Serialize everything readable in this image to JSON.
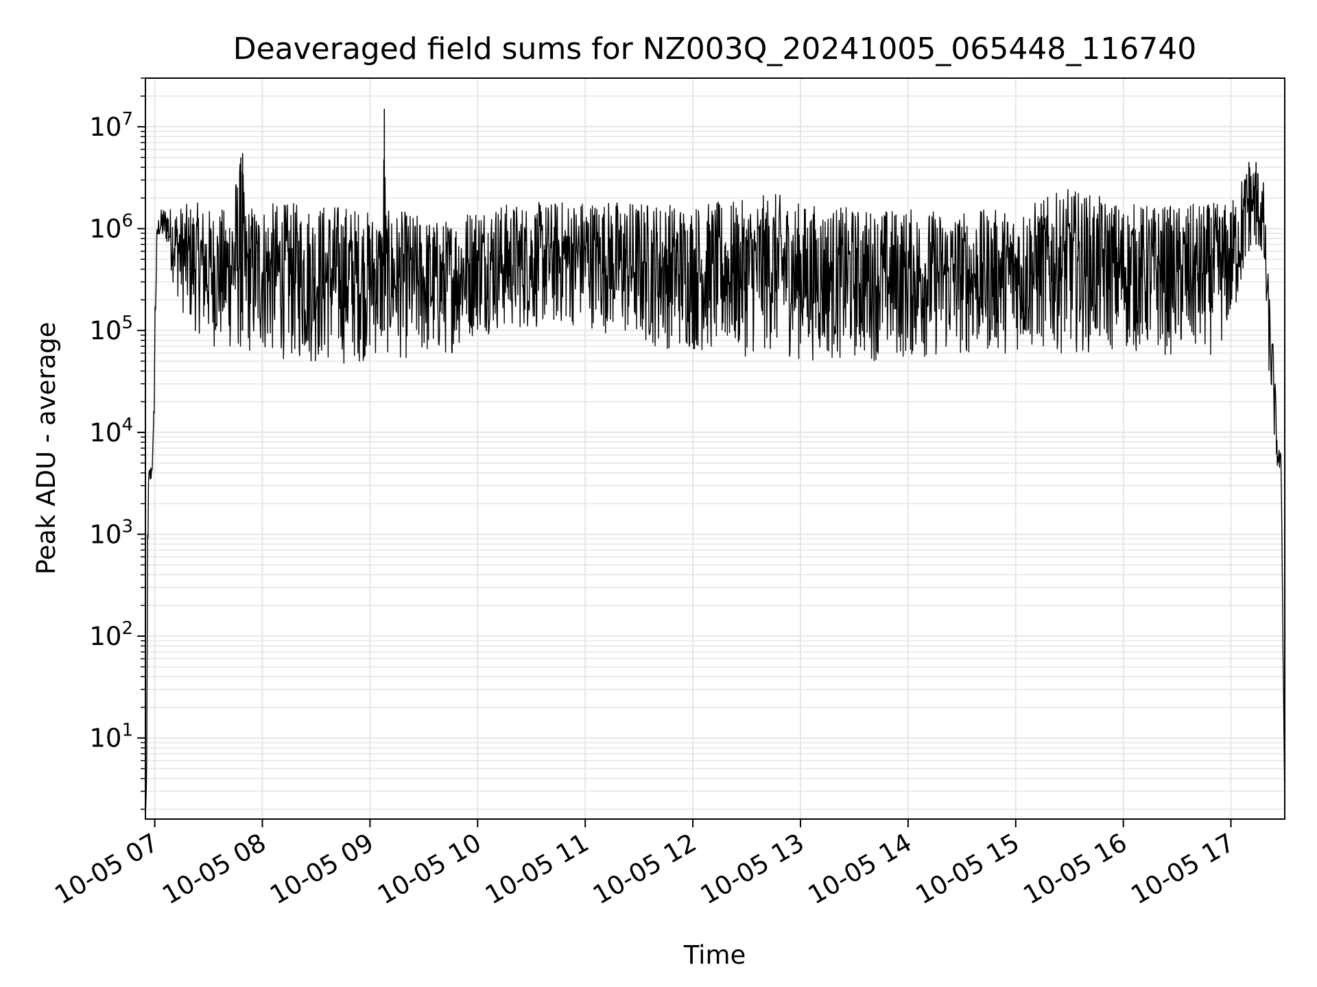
{
  "chart_data": {
    "type": "line",
    "title": "Deaveraged field sums for NZ003Q_20241005_065448_116740",
    "xlabel": "Time",
    "ylabel": "Peak ADU - average",
    "xlim": [
      "2024-10-05T06:54:48",
      "2024-10-05T17:30:00"
    ],
    "ylim": [
      1.6,
      30000000
    ],
    "yscale": "log",
    "xtick_labels": [
      "10-05 07",
      "10-05 08",
      "10-05 09",
      "10-05 10",
      "10-05 11",
      "10-05 12",
      "10-05 13",
      "10-05 14",
      "10-05 15",
      "10-05 16",
      "10-05 17"
    ],
    "xtick_times": [
      "2024-10-05T07:00",
      "2024-10-05T08:00",
      "2024-10-05T09:00",
      "2024-10-05T10:00",
      "2024-10-05T11:00",
      "2024-10-05T12:00",
      "2024-10-05T13:00",
      "2024-10-05T14:00",
      "2024-10-05T15:00",
      "2024-10-05T16:00",
      "2024-10-05T17:00"
    ],
    "ytick_labels": [
      {
        "base": "10",
        "exp": "1"
      },
      {
        "base": "10",
        "exp": "2"
      },
      {
        "base": "10",
        "exp": "3"
      },
      {
        "base": "10",
        "exp": "4"
      },
      {
        "base": "10",
        "exp": "5"
      },
      {
        "base": "10",
        "exp": "6"
      },
      {
        "base": "10",
        "exp": "7"
      }
    ],
    "ytick_values": [
      10,
      100,
      1000,
      10000,
      100000,
      1000000,
      10000000
    ],
    "grid": true,
    "line_color": "#000000",
    "grid_color": "#e6e6e6",
    "series": [
      {
        "x": [
          "2024-10-05T06:54:48",
          "2024-10-05T06:55:30",
          "2024-10-05T06:56:00",
          "2024-10-05T06:56:40",
          "2024-10-05T06:57:20",
          "2024-10-05T06:58:20",
          "2024-10-05T06:59:20",
          "2024-10-05T07:00:20",
          "2024-10-05T07:01:00",
          "2024-10-05T07:01:40",
          "2024-10-05T07:02:30",
          "2024-10-05T07:03:20",
          "2024-10-05T07:04:20",
          "2024-10-05T07:05:20",
          "2024-10-05T07:06:30",
          "2024-10-05T07:08:00",
          "2024-10-05T07:10:00",
          "2024-10-05T07:15:00",
          "2024-10-05T07:20:00",
          "2024-10-05T07:25:00",
          "2024-10-05T07:30:00",
          "2024-10-05T07:40:00",
          "2024-10-05T07:48:00",
          "2024-10-05T07:49:00",
          "2024-10-05T07:50:00",
          "2024-10-05T08:00:00",
          "2024-10-05T08:15:00",
          "2024-10-05T08:30:00",
          "2024-10-05T08:45:00",
          "2024-10-05T09:00:00",
          "2024-10-05T09:07:00",
          "2024-10-05T09:08:00",
          "2024-10-05T09:09:00",
          "2024-10-05T09:20:00",
          "2024-10-05T09:40:00",
          "2024-10-05T10:00:00",
          "2024-10-05T10:30:00",
          "2024-10-05T11:00:00",
          "2024-10-05T11:30:00",
          "2024-10-05T12:00:00",
          "2024-10-05T12:30:00",
          "2024-10-05T12:45:00",
          "2024-10-05T13:00:00",
          "2024-10-05T13:30:00",
          "2024-10-05T14:00:00",
          "2024-10-05T14:30:00",
          "2024-10-05T15:00:00",
          "2024-10-05T15:30:00",
          "2024-10-05T16:00:00",
          "2024-10-05T16:30:00",
          "2024-10-05T16:45:00",
          "2024-10-05T16:55:00",
          "2024-10-05T17:00:00",
          "2024-10-05T17:05:00",
          "2024-10-05T17:10:00",
          "2024-10-05T17:14:00",
          "2024-10-05T17:18:00",
          "2024-10-05T17:21:00",
          "2024-10-05T17:24:00",
          "2024-10-05T17:26:00",
          "2024-10-05T17:28:00",
          "2024-10-05T17:30:00"
        ],
        "low": [
          1.6,
          4,
          300,
          2500,
          2700,
          3500,
          6000,
          50000,
          300000,
          700000,
          800000,
          700000,
          700000,
          700000,
          700000,
          500000,
          300000,
          150000,
          100000,
          90000,
          70000,
          60000,
          55000,
          55000,
          55000,
          55000,
          50000,
          45000,
          45000,
          50000,
          55000,
          55000,
          55000,
          50000,
          50000,
          90000,
          100000,
          110000,
          70000,
          60000,
          55000,
          60000,
          50000,
          50000,
          50000,
          55000,
          60000,
          60000,
          60000,
          55000,
          50000,
          70000,
          100000,
          200000,
          600000,
          700000,
          400000,
          40000,
          8000,
          4000,
          3500,
          2
        ],
        "high": [
          1.6,
          4,
          1500,
          4500,
          4800,
          5000,
          12000,
          500000,
          900000,
          1200000,
          1400000,
          1500000,
          1700000,
          1600000,
          1700000,
          1600000,
          1700000,
          1700000,
          1800000,
          1800000,
          1600000,
          1600000,
          5000000,
          5500000,
          1800000,
          1800000,
          1800000,
          1800000,
          1800000,
          1500000,
          1500000,
          15000000,
          1500000,
          1500000,
          1200000,
          1800000,
          1800000,
          2000000,
          1900000,
          1800000,
          1900000,
          2300000,
          1800000,
          1600000,
          1600000,
          1500000,
          1600000,
          2500000,
          1800000,
          1700000,
          1800000,
          1800000,
          1800000,
          3000000,
          4500000,
          4500000,
          3000000,
          300000,
          60000,
          8000,
          6000,
          2
        ]
      }
    ]
  }
}
